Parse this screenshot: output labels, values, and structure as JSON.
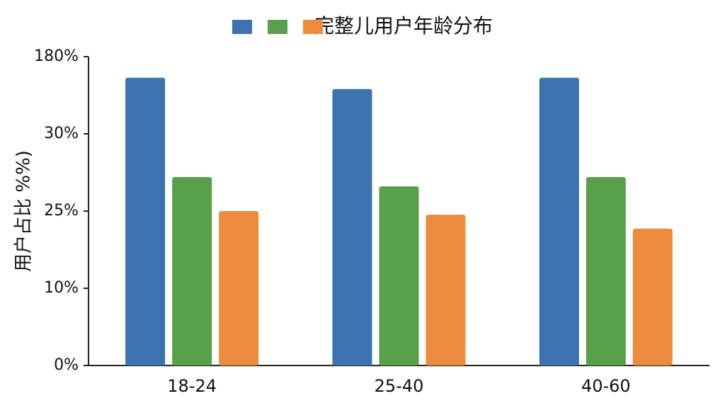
{
  "chart_data": {
    "type": "bar",
    "title": "完整儿用户年龄分布",
    "y_label": "用户占比 %%)",
    "categories": [
      "18-24",
      "25-40",
      "40-60"
    ],
    "series": [
      {
        "color": "#3a73b0",
        "values": [
          139,
          117,
          139
        ]
      },
      {
        "color": "#58a04a",
        "values": [
          27.2,
          26.6,
          27.2
        ]
      },
      {
        "color": "#ec8c3c",
        "values": [
          25,
          24.3,
          21.6
        ]
      }
    ],
    "ylim": [
      0,
      180
    ],
    "yticks": [
      {
        "value": 0,
        "label": "0%"
      },
      {
        "value": 10,
        "label": "10%"
      },
      {
        "value": 25,
        "label": "25%"
      },
      {
        "value": 30,
        "label": "30%"
      },
      {
        "value": 180,
        "label": "180%"
      }
    ]
  }
}
